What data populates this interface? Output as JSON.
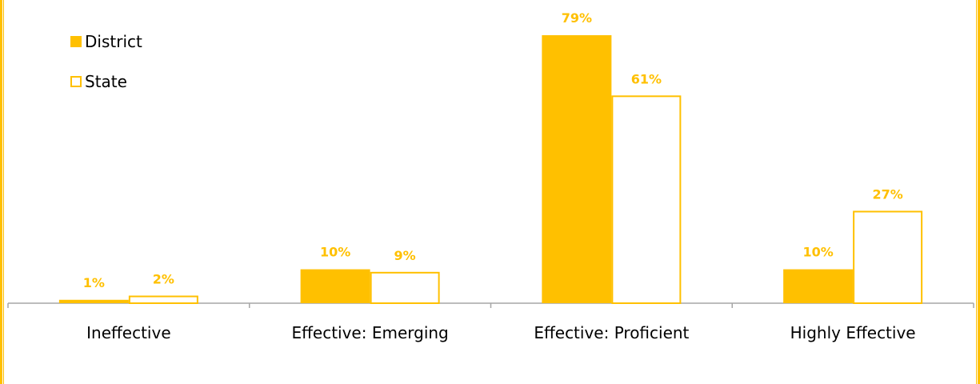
{
  "chart_data": {
    "type": "bar",
    "categories": [
      "Ineffective",
      "Effective: Emerging",
      "Effective: Proficient",
      "Highly Effective"
    ],
    "series": [
      {
        "name": "District",
        "values": [
          1,
          10,
          79,
          10
        ],
        "labels": [
          "1%",
          "10%",
          "79%",
          "10%"
        ]
      },
      {
        "name": "State",
        "values": [
          2,
          9,
          61,
          27
        ],
        "labels": [
          "2%",
          "9%",
          "61%",
          "27%"
        ]
      }
    ],
    "ylim": [
      0,
      80
    ],
    "grid": false,
    "legend": "top-left",
    "colors": {
      "accent": "#FFC000",
      "axis": "#A6A6A6",
      "frame": "#FFC000"
    }
  }
}
